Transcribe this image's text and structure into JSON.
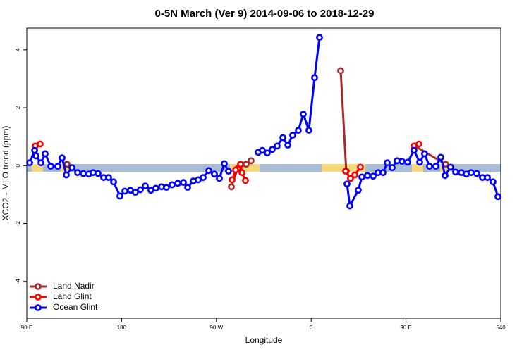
{
  "chart_data": {
    "type": "line",
    "title": "0-5N March (Ver 9)   2014-09-06 to 2018-12-29",
    "x_label": "Longitude",
    "y_label": "XCO2 - MLO trend (ppm)",
    "xlim": [
      90,
      540
    ],
    "xticks": [
      {
        "value": 90,
        "label": "90 E"
      },
      180,
      {
        "value": 270,
        "label": "90 W"
      },
      {
        "value": 360,
        "label": "0"
      },
      {
        "value": 450,
        "label": "90 E"
      },
      540
    ],
    "ylim": [
      -5.27,
      4.75
    ],
    "yticks": [
      -4,
      -2,
      0,
      2,
      4
    ],
    "legend": "bottom-left",
    "series": [
      {
        "name": "Land Nadir",
        "color": "#a52a2a",
        "x": [
          128.2,
          null,
          284.2,
          290.2,
          298.2,
          302.9,
          null,
          388.0,
          393.3,
          null,
          458.3,
          487.7
        ],
        "values": [
          0.05,
          null,
          -0.73,
          -0.1,
          0.05,
          0.17,
          null,
          3.28,
          -0.19,
          null,
          0.68,
          0.05
        ]
      },
      {
        "name": "Land Glint",
        "color": "#ff0000",
        "x": [
          98.0,
          102.7,
          null,
          284.9,
          288.2,
          292.9,
          294.3,
          297.6,
          null,
          392.7,
          397.3,
          401.4,
          406.7,
          null,
          457.6,
          462.3
        ],
        "values": [
          0.68,
          0.75,
          null,
          -0.49,
          -0.15,
          0.05,
          -0.24,
          -0.51,
          null,
          -0.19,
          -0.44,
          -0.32,
          -0.05,
          null,
          0.68,
          0.75
        ]
      },
      {
        "name": "Ocean Glint",
        "color": "#0000ff",
        "x": [
          92.7,
          97.4,
          98.7,
          103.4,
          107.4,
          112.8,
          119.5,
          123.5,
          127.5,
          132.9,
          138.2,
          143.6,
          148.9,
          152.9,
          157.6,
          163.0,
          167.7,
          172.4,
          178.4,
          183.1,
          188.4,
          193.1,
          197.8,
          202.5,
          207.8,
          212.5,
          217.9,
          222.6,
          227.9,
          233.3,
          238.7,
          242.7,
          248.0,
          252.7,
          257.4,
          262.8,
          268.1,
          272.8,
          277.5,
          281.5,
          null,
          309.6,
          313.6,
          318.3,
          323.0,
          327.7,
          333.1,
          337.8,
          342.4,
          347.8,
          352.5,
          357.8,
          363.2,
          367.9,
          null,
          394.0,
          396.7,
          404.7,
          408.1,
          413.4,
          418.8,
          423.5,
          428.2,
          432.2,
          436.9,
          441.5,
          446.2,
          451.6,
          457.6,
          463.0,
          467.6,
          472.3,
          478.4,
          483.1,
          487.1,
          492.4,
          497.1,
          502.5,
          507.2,
          511.8,
          517.2,
          522.6,
          527.3,
          532.6,
          537.3
        ],
        "values": [
          0.1,
          0.53,
          0.34,
          0.1,
          0.41,
          -0.02,
          -0.02,
          0.27,
          -0.32,
          -0.07,
          -0.24,
          -0.27,
          -0.29,
          -0.24,
          -0.27,
          -0.41,
          -0.41,
          -0.56,
          -1.05,
          -0.88,
          -0.85,
          -0.92,
          -0.83,
          -0.7,
          -0.85,
          -0.78,
          -0.73,
          -0.75,
          -0.66,
          -0.61,
          -0.58,
          -0.75,
          -0.53,
          -0.49,
          -0.41,
          -0.17,
          -0.29,
          -0.44,
          0.07,
          -0.19,
          null,
          0.46,
          0.53,
          0.44,
          0.56,
          0.68,
          0.97,
          0.71,
          1.05,
          1.22,
          1.78,
          1.22,
          3.04,
          4.43,
          null,
          -0.63,
          -1.39,
          -0.85,
          -0.39,
          -0.34,
          -0.36,
          -0.24,
          -0.24,
          0.1,
          -0.07,
          0.17,
          0.15,
          0.12,
          0.53,
          0.12,
          0.41,
          -0.02,
          -0.02,
          0.29,
          -0.34,
          -0.05,
          -0.22,
          -0.24,
          -0.29,
          -0.24,
          -0.27,
          -0.41,
          -0.41,
          -0.56,
          -1.07
        ]
      }
    ]
  }
}
